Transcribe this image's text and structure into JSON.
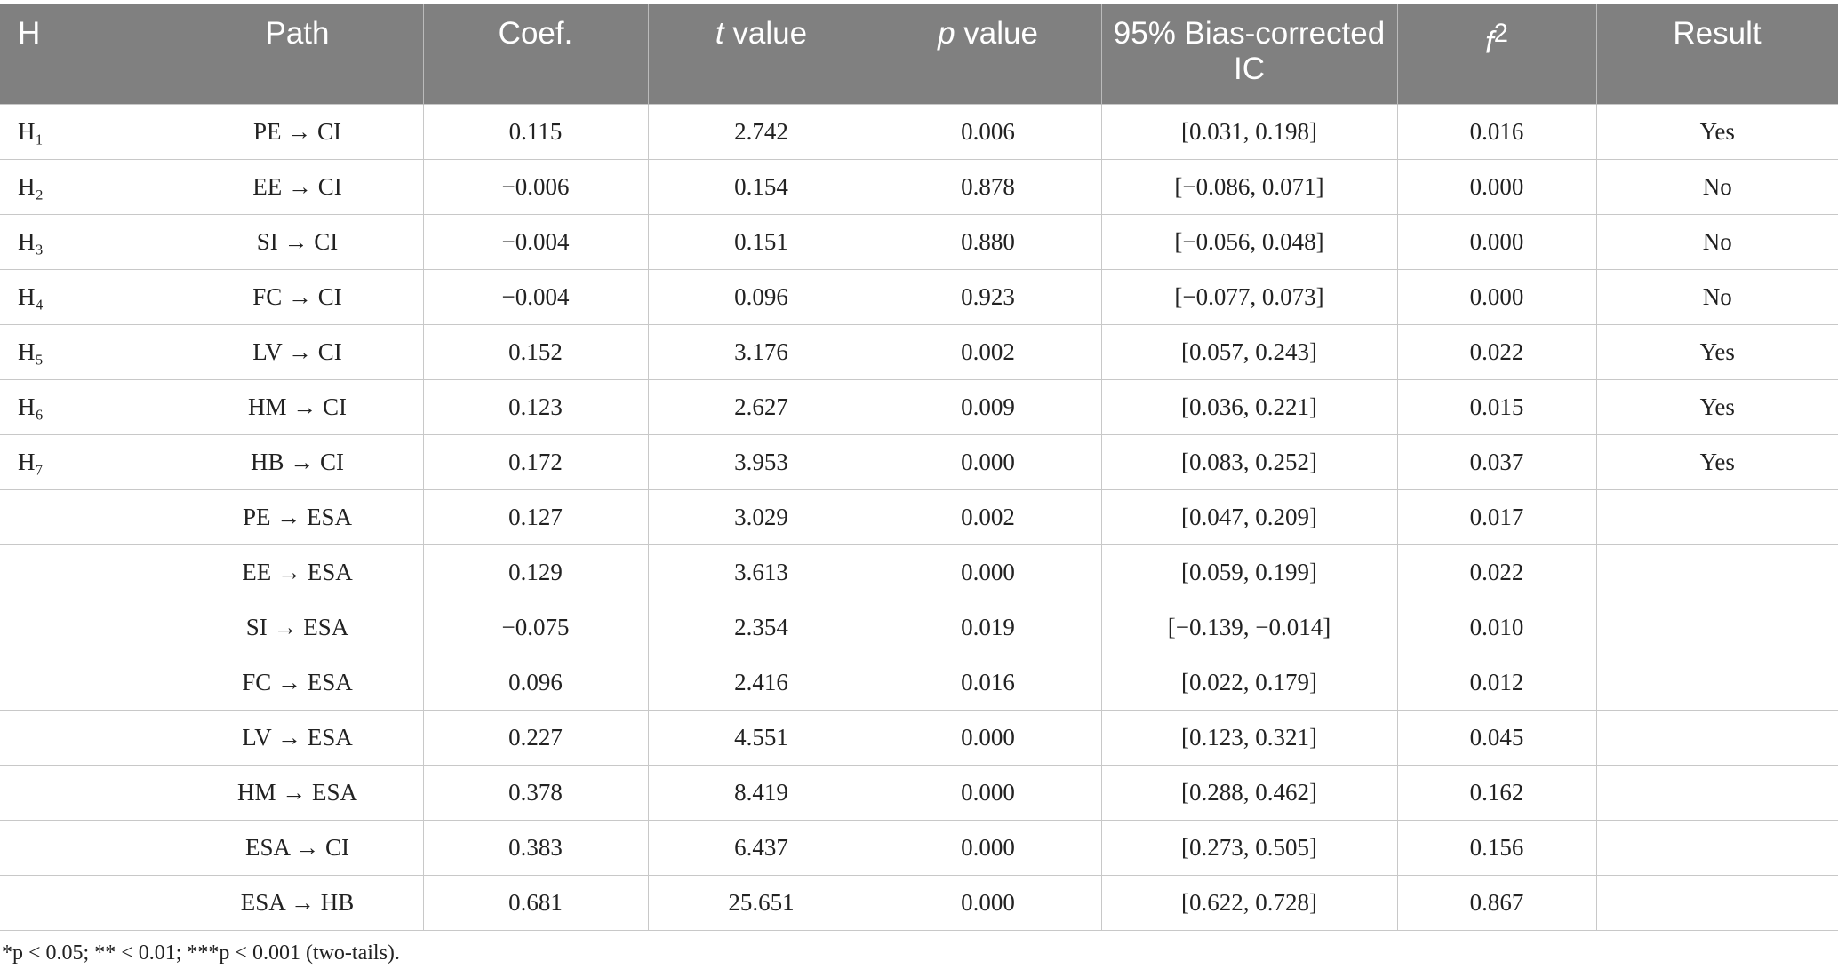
{
  "table": {
    "header": [
      "H",
      "Path",
      "Coef.",
      {
        "italic": "t",
        "text": "value"
      },
      {
        "italic": "p",
        "text": "value"
      },
      "95% Bias-corrected IC",
      {
        "italic": "f",
        "sup": "2"
      },
      "Result"
    ],
    "rows": [
      [
        "H₁",
        "PE → CI",
        "0.115",
        "2.742",
        "0.006",
        "[0.031, 0.198]",
        "0.016",
        "Yes"
      ],
      [
        "H₂",
        "EE → CI",
        "−0.006",
        "0.154",
        "0.878",
        "[−0.086, 0.071]",
        "0.000",
        "No"
      ],
      [
        "H₃",
        "SI → CI",
        "−0.004",
        "0.151",
        "0.880",
        "[−0.056, 0.048]",
        "0.000",
        "No"
      ],
      [
        "H₄",
        "FC → CI",
        "−0.004",
        "0.096",
        "0.923",
        "[−0.077, 0.073]",
        "0.000",
        "No"
      ],
      [
        "H₅",
        "LV → CI",
        "0.152",
        "3.176",
        "0.002",
        "[0.057, 0.243]",
        "0.022",
        "Yes"
      ],
      [
        "H₆",
        "HM → CI",
        "0.123",
        "2.627",
        "0.009",
        "[0.036, 0.221]",
        "0.015",
        "Yes"
      ],
      [
        "H₇",
        "HB → CI",
        "0.172",
        "3.953",
        "0.000",
        "[0.083, 0.252]",
        "0.037",
        "Yes"
      ],
      [
        null,
        "PE → ESA",
        "0.127",
        "3.029",
        "0.002",
        "[0.047, 0.209]",
        "0.017",
        null
      ],
      [
        null,
        "EE → ESA",
        "0.129",
        "3.613",
        "0.000",
        "[0.059, 0.199]",
        "0.022",
        null
      ],
      [
        null,
        "SI → ESA",
        "−0.075",
        "2.354",
        "0.019",
        "[−0.139, −0.014]",
        "0.010",
        null
      ],
      [
        null,
        "FC → ESA",
        "0.096",
        "2.416",
        "0.016",
        "[0.022, 0.179]",
        "0.012",
        null
      ],
      [
        null,
        "LV → ESA",
        "0.227",
        "4.551",
        "0.000",
        "[0.123, 0.321]",
        "0.045",
        null
      ],
      [
        null,
        "HM → ESA",
        "0.378",
        "8.419",
        "0.000",
        "[0.288, 0.462]",
        "0.162",
        null
      ],
      [
        null,
        "ESA → CI",
        "0.383",
        "6.437",
        "0.000",
        "[0.273, 0.505]",
        "0.156",
        null
      ],
      [
        null,
        "ESA → HB",
        "0.681",
        "25.651",
        "0.000",
        "[0.622, 0.728]",
        "0.867",
        null
      ]
    ]
  },
  "footnote": "*p < 0.05; ** < 0.01; ***p < 0.001 (two-tails)."
}
